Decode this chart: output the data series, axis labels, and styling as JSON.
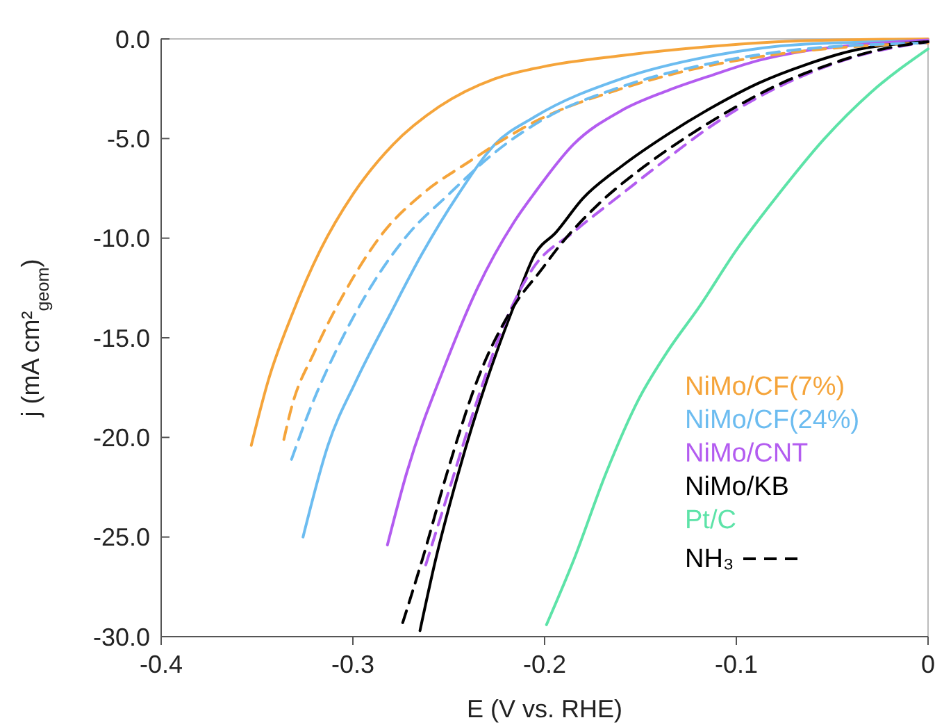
{
  "chart_data": {
    "type": "line",
    "xlabel": "E (V vs. RHE)",
    "ylabel": "j (mA cm²$_{geom}$)",
    "xlim": [
      -0.4,
      0
    ],
    "xticks": [
      -0.4,
      -0.3,
      -0.2,
      -0.1,
      0
    ],
    "ylim": [
      -30,
      0
    ],
    "yticks": [
      {
        "value": -30,
        "label": "-30.0"
      },
      {
        "value": -25,
        "label": "-25.0"
      },
      {
        "value": -20,
        "label": "-20.0"
      },
      {
        "value": -15,
        "label": "-15.0"
      },
      {
        "value": -10,
        "label": "-10.0"
      },
      {
        "value": -5,
        "label": "-5.0"
      },
      {
        "value": 0,
        "label": "0.0"
      }
    ],
    "grid": false,
    "legend": "bottom right",
    "annotations": [
      "NH₃"
    ],
    "series": [
      {
        "name": "NiMo/CF(7%)",
        "color": "#f5a43a",
        "line_style": "solid",
        "x": [
          -0.353,
          -0.344,
          -0.332,
          -0.317,
          -0.3,
          -0.279,
          -0.255,
          -0.226,
          -0.201,
          -0.16,
          -0.112,
          -0.064,
          0
        ],
        "values": [
          -20.4,
          -17.1,
          -13.9,
          -10.6,
          -7.8,
          -5.3,
          -3.4,
          -2,
          -1.4,
          -0.84,
          -0.37,
          -0.09,
          0
        ]
      },
      {
        "name": "NiMo/CF(24%)",
        "color": "#6cbcf0",
        "line_style": "solid",
        "x": [
          -0.326,
          -0.313,
          -0.298,
          -0.281,
          -0.264,
          -0.245,
          -0.226,
          -0.205,
          -0.16,
          -0.112,
          -0.064,
          0
        ],
        "values": [
          -25,
          -20.4,
          -17.1,
          -13.9,
          -10.8,
          -7.8,
          -5.3,
          -3.9,
          -2,
          -0.84,
          -0.26,
          -0.1
        ]
      },
      {
        "name": "NiMo/CNT",
        "color": "#b35cf0",
        "line_style": "solid",
        "x": [
          -0.282,
          -0.272,
          -0.252,
          -0.235,
          -0.216,
          -0.205,
          -0.185,
          -0.16,
          -0.136,
          -0.112,
          -0.088,
          -0.064,
          -0.04,
          0
        ],
        "values": [
          -25.4,
          -21.8,
          -16.4,
          -12.5,
          -9.2,
          -7.7,
          -5.3,
          -3.6,
          -2.6,
          -1.8,
          -1.07,
          -0.6,
          -0.33,
          -0.05
        ]
      },
      {
        "name": "NiMo/KB",
        "color": "#000000",
        "line_style": "solid",
        "x": [
          -0.265,
          -0.257,
          -0.245,
          -0.23,
          -0.216,
          -0.205,
          -0.194,
          -0.18,
          -0.16,
          -0.136,
          -0.112,
          -0.088,
          -0.064,
          -0.04,
          0
        ],
        "values": [
          -29.7,
          -26.2,
          -21.8,
          -17.1,
          -13.4,
          -10.8,
          -9.7,
          -8,
          -6.4,
          -4.8,
          -3.4,
          -2.2,
          -1.3,
          -0.6,
          -0.14
        ]
      },
      {
        "name": "Pt/C",
        "color": "#5de3a8",
        "line_style": "solid",
        "x": [
          -0.199,
          -0.185,
          -0.168,
          -0.151,
          -0.136,
          -0.119,
          -0.1,
          -0.078,
          -0.054,
          -0.03,
          0
        ],
        "values": [
          -29.4,
          -26.2,
          -21.8,
          -18.1,
          -15.7,
          -13.4,
          -10.6,
          -7.8,
          -5,
          -2.7,
          -0.5
        ]
      },
      {
        "color": "#f5a43a",
        "line_style": "dashed",
        "x": [
          -0.336,
          -0.332,
          -0.32,
          -0.303,
          -0.284,
          -0.264,
          -0.24,
          -0.204,
          -0.16,
          -0.112,
          -0.064,
          0
        ],
        "values": [
          -20.1,
          -18.5,
          -15.7,
          -12.5,
          -9.7,
          -7.8,
          -6.2,
          -4.1,
          -2.5,
          -1.3,
          -0.6,
          -0.2
        ]
      },
      {
        "color": "#6cbcf0",
        "line_style": "dashed",
        "x": [
          -0.332,
          -0.322,
          -0.308,
          -0.291,
          -0.272,
          -0.25,
          -0.226,
          -0.2,
          -0.16,
          -0.112,
          -0.064,
          0
        ],
        "values": [
          -21.1,
          -18.5,
          -15.5,
          -12.5,
          -9.9,
          -7.8,
          -5.7,
          -4,
          -2.4,
          -1.2,
          -0.5,
          -0.2
        ]
      },
      {
        "color": "#b35cf0",
        "line_style": "dashed",
        "x": [
          -0.262,
          -0.25,
          -0.235,
          -0.221,
          -0.206,
          -0.185,
          -0.16,
          -0.136,
          -0.112,
          -0.088,
          -0.064,
          -0.04,
          0
        ],
        "values": [
          -26.4,
          -22.7,
          -18.1,
          -14.3,
          -11.5,
          -9.7,
          -7.8,
          -6,
          -4.3,
          -2.9,
          -1.8,
          -0.95,
          -0.14
        ]
      },
      {
        "color": "#000000",
        "line_style": "dashed",
        "x": [
          -0.274,
          -0.264,
          -0.25,
          -0.235,
          -0.216,
          -0.201,
          -0.194,
          -0.172,
          -0.148,
          -0.124,
          -0.1,
          -0.076,
          -0.052,
          -0.028,
          0
        ],
        "values": [
          -29.3,
          -26.2,
          -21.5,
          -17.1,
          -13.4,
          -11.5,
          -10.6,
          -8.3,
          -6.4,
          -4.8,
          -3.4,
          -2.2,
          -1.3,
          -0.6,
          -0.14
        ]
      }
    ]
  }
}
